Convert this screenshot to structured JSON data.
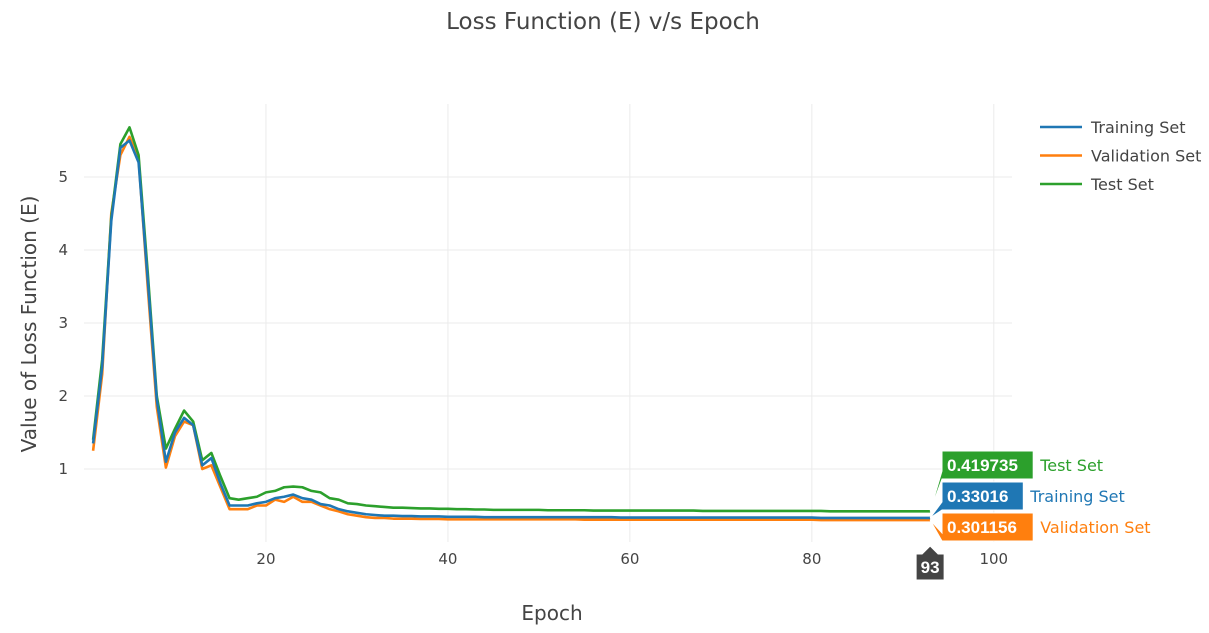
{
  "chart_data": {
    "type": "line",
    "title": "Loss Function (E) v/s Epoch",
    "xlabel": "Epoch",
    "ylabel": "Value of Loss Function (E)",
    "xlim": [
      0,
      102
    ],
    "ylim": [
      0,
      6
    ],
    "xticks": [
      20,
      40,
      60,
      80,
      100
    ],
    "yticks": [
      1,
      2,
      3,
      4,
      5
    ],
    "grid": true,
    "legend_position": "top-right",
    "x": [
      1,
      2,
      3,
      4,
      5,
      6,
      7,
      8,
      9,
      10,
      11,
      12,
      13,
      14,
      15,
      16,
      17,
      18,
      19,
      20,
      21,
      22,
      23,
      24,
      25,
      26,
      27,
      28,
      29,
      30,
      31,
      32,
      33,
      34,
      35,
      36,
      37,
      38,
      39,
      40,
      41,
      42,
      43,
      44,
      45,
      46,
      47,
      48,
      49,
      50,
      51,
      52,
      53,
      54,
      55,
      56,
      57,
      58,
      59,
      60,
      61,
      62,
      63,
      64,
      65,
      66,
      67,
      68,
      69,
      70,
      71,
      72,
      73,
      74,
      75,
      76,
      77,
      78,
      79,
      80,
      81,
      82,
      83,
      84,
      85,
      86,
      87,
      88,
      89,
      90,
      91,
      92,
      93
    ],
    "series": [
      {
        "name": "Training Set",
        "color": "#1f77b4",
        "values": [
          1.35,
          2.4,
          4.4,
          5.4,
          5.5,
          5.2,
          3.6,
          1.95,
          1.1,
          1.5,
          1.7,
          1.6,
          1.05,
          1.15,
          0.8,
          0.5,
          0.5,
          0.5,
          0.53,
          0.55,
          0.6,
          0.62,
          0.65,
          0.6,
          0.58,
          0.52,
          0.5,
          0.45,
          0.42,
          0.4,
          0.38,
          0.37,
          0.36,
          0.36,
          0.355,
          0.355,
          0.35,
          0.35,
          0.35,
          0.345,
          0.345,
          0.345,
          0.345,
          0.34,
          0.34,
          0.34,
          0.34,
          0.34,
          0.34,
          0.34,
          0.34,
          0.34,
          0.34,
          0.34,
          0.34,
          0.34,
          0.34,
          0.34,
          0.335,
          0.335,
          0.335,
          0.335,
          0.335,
          0.335,
          0.335,
          0.335,
          0.335,
          0.335,
          0.335,
          0.335,
          0.335,
          0.335,
          0.335,
          0.335,
          0.335,
          0.335,
          0.335,
          0.335,
          0.335,
          0.335,
          0.33,
          0.33,
          0.33,
          0.33,
          0.33,
          0.33,
          0.33,
          0.33,
          0.33,
          0.33,
          0.33,
          0.33,
          0.33016
        ]
      },
      {
        "name": "Validation Set",
        "color": "#ff7f0e",
        "values": [
          1.25,
          2.3,
          4.5,
          5.3,
          5.55,
          5.25,
          3.5,
          1.85,
          1.02,
          1.45,
          1.65,
          1.6,
          1.0,
          1.05,
          0.75,
          0.45,
          0.45,
          0.45,
          0.5,
          0.5,
          0.58,
          0.55,
          0.62,
          0.55,
          0.55,
          0.5,
          0.45,
          0.42,
          0.38,
          0.36,
          0.34,
          0.33,
          0.33,
          0.32,
          0.32,
          0.32,
          0.315,
          0.315,
          0.315,
          0.31,
          0.31,
          0.31,
          0.31,
          0.31,
          0.31,
          0.31,
          0.31,
          0.31,
          0.31,
          0.31,
          0.31,
          0.31,
          0.31,
          0.31,
          0.305,
          0.305,
          0.305,
          0.305,
          0.305,
          0.305,
          0.305,
          0.305,
          0.305,
          0.305,
          0.305,
          0.305,
          0.305,
          0.305,
          0.305,
          0.305,
          0.305,
          0.305,
          0.305,
          0.305,
          0.305,
          0.305,
          0.305,
          0.305,
          0.305,
          0.305,
          0.3,
          0.3,
          0.3,
          0.3,
          0.3,
          0.3,
          0.3,
          0.3,
          0.3,
          0.3,
          0.3,
          0.3,
          0.301156
        ]
      },
      {
        "name": "Test Set",
        "color": "#2ca02c",
        "values": [
          1.4,
          2.5,
          4.45,
          5.45,
          5.68,
          5.3,
          3.7,
          2.0,
          1.28,
          1.55,
          1.8,
          1.65,
          1.12,
          1.22,
          0.9,
          0.6,
          0.58,
          0.6,
          0.62,
          0.68,
          0.7,
          0.75,
          0.76,
          0.75,
          0.7,
          0.68,
          0.6,
          0.58,
          0.53,
          0.52,
          0.5,
          0.49,
          0.48,
          0.47,
          0.47,
          0.465,
          0.46,
          0.46,
          0.455,
          0.455,
          0.45,
          0.45,
          0.445,
          0.445,
          0.44,
          0.44,
          0.44,
          0.44,
          0.44,
          0.44,
          0.435,
          0.435,
          0.435,
          0.435,
          0.435,
          0.43,
          0.43,
          0.43,
          0.43,
          0.43,
          0.43,
          0.43,
          0.43,
          0.43,
          0.43,
          0.43,
          0.43,
          0.425,
          0.425,
          0.425,
          0.425,
          0.425,
          0.425,
          0.425,
          0.425,
          0.425,
          0.425,
          0.425,
          0.425,
          0.425,
          0.425,
          0.42,
          0.42,
          0.42,
          0.42,
          0.42,
          0.42,
          0.42,
          0.42,
          0.42,
          0.42,
          0.42,
          0.419735
        ]
      }
    ],
    "hover": {
      "x_label": "93",
      "entries": [
        {
          "series": "Test Set",
          "value": "0.419735",
          "color": "#2ca02c"
        },
        {
          "series": "Training Set",
          "value": "0.33016",
          "color": "#1f77b4"
        },
        {
          "series": "Validation Set",
          "value": "0.301156",
          "color": "#ff7f0e"
        }
      ]
    }
  }
}
